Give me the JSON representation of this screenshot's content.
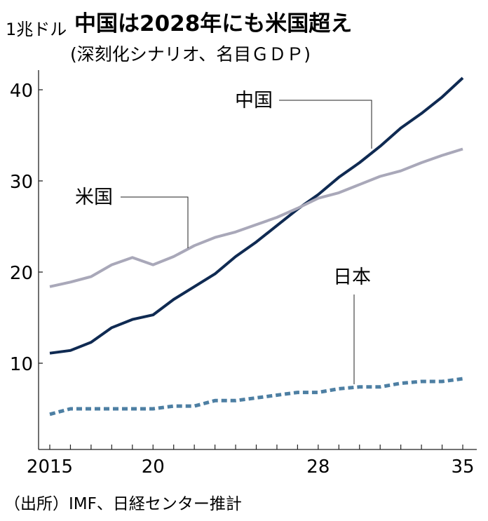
{
  "chart_data": {
    "type": "line",
    "title": "中国は2028年にも米国超え",
    "subtitle": "(深刻化シナリオ、名目ＧＤＰ)",
    "ylabel": "1兆ドル",
    "source": "（出所）IMF、日経センター推計",
    "x": [
      2015,
      2016,
      2017,
      2018,
      2019,
      2020,
      2021,
      2022,
      2023,
      2024,
      2025,
      2026,
      2027,
      2028,
      2029,
      2030,
      2031,
      2032,
      2033,
      2034,
      2035
    ],
    "xticks": [
      {
        "value": 2015,
        "label": "2015"
      },
      {
        "value": 2020,
        "label": "20"
      },
      {
        "value": 2028,
        "label": "28"
      },
      {
        "value": 2035,
        "label": "35"
      }
    ],
    "yticks": [
      10,
      20,
      30,
      40
    ],
    "xlim": [
      2015,
      2035
    ],
    "ylim": [
      0,
      44
    ],
    "grid": false,
    "legend": "direct labels",
    "series": [
      {
        "name": "中国",
        "color": "#0f2a52",
        "style": "solid",
        "values": [
          11.1,
          11.4,
          12.3,
          13.9,
          14.8,
          15.3,
          17.0,
          18.4,
          19.8,
          21.7,
          23.3,
          25.1,
          26.9,
          28.5,
          30.4,
          32.0,
          33.8,
          35.8,
          37.4,
          39.2,
          41.3
        ]
      },
      {
        "name": "米国",
        "color": "#a9a8b9",
        "style": "solid",
        "values": [
          18.4,
          18.9,
          19.5,
          20.8,
          21.6,
          20.8,
          21.7,
          22.9,
          23.8,
          24.4,
          25.2,
          26.0,
          27.0,
          28.1,
          28.7,
          29.6,
          30.5,
          31.1,
          32.0,
          32.8,
          33.5
        ]
      },
      {
        "name": "日本",
        "color": "#4d7fa3",
        "style": "dotted",
        "values": [
          4.4,
          5.0,
          5.0,
          5.0,
          5.0,
          5.0,
          5.3,
          5.3,
          5.9,
          5.9,
          6.2,
          6.5,
          6.8,
          6.8,
          7.2,
          7.4,
          7.4,
          7.8,
          8.0,
          8.0,
          8.3
        ]
      }
    ]
  }
}
